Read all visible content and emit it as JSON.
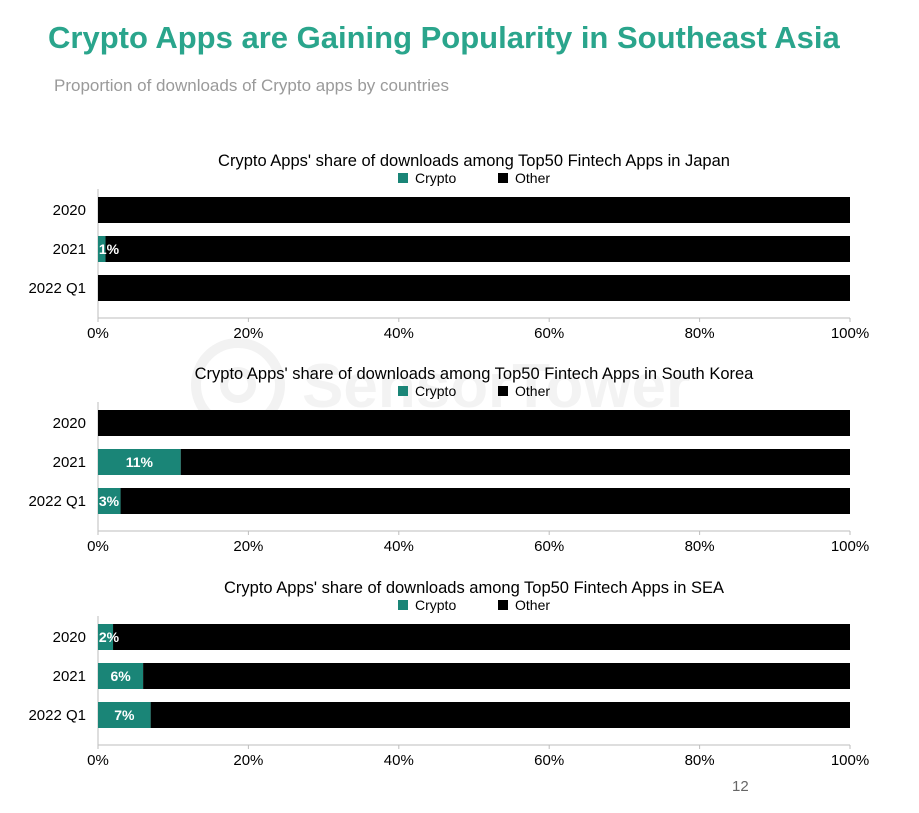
{
  "header": {
    "title": "Crypto Apps are Gaining Popularity in Southeast Asia",
    "subtitle": "Proportion of downloads of Crypto apps by countries"
  },
  "watermark": {
    "text": "SensorTower"
  },
  "page_number": "12",
  "colors": {
    "title": "#2aa58c",
    "crypto": "#1a8577",
    "other": "#000000",
    "axis": "#bdbdbd"
  },
  "chart_data": [
    {
      "type": "bar",
      "orientation": "horizontal",
      "stacked": true,
      "title": "Crypto Apps' share of downloads among Top50 Fintech Apps in Japan",
      "categories": [
        "2020",
        "2021",
        "2022 Q1"
      ],
      "series": [
        {
          "name": "Crypto",
          "values": [
            0,
            1,
            0
          ],
          "labels": [
            "",
            "1%",
            ""
          ]
        },
        {
          "name": "Other",
          "values": [
            100,
            99,
            100
          ]
        }
      ],
      "xlim": [
        0,
        100
      ],
      "xticks": [
        "0%",
        "20%",
        "40%",
        "60%",
        "80%",
        "100%"
      ],
      "legend": "top"
    },
    {
      "type": "bar",
      "orientation": "horizontal",
      "stacked": true,
      "title": "Crypto Apps' share of downloads among Top50 Fintech Apps in South Korea",
      "categories": [
        "2020",
        "2021",
        "2022 Q1"
      ],
      "series": [
        {
          "name": "Crypto",
          "values": [
            0,
            11,
            3
          ],
          "labels": [
            "",
            "11%",
            "3%"
          ]
        },
        {
          "name": "Other",
          "values": [
            100,
            89,
            97
          ]
        }
      ],
      "xlim": [
        0,
        100
      ],
      "xticks": [
        "0%",
        "20%",
        "40%",
        "60%",
        "80%",
        "100%"
      ],
      "legend": "top"
    },
    {
      "type": "bar",
      "orientation": "horizontal",
      "stacked": true,
      "title": "Crypto Apps' share of downloads among Top50 Fintech Apps in SEA",
      "categories": [
        "2020",
        "2021",
        "2022 Q1"
      ],
      "series": [
        {
          "name": "Crypto",
          "values": [
            2,
            6,
            7
          ],
          "labels": [
            "2%",
            "6%",
            "7%"
          ]
        },
        {
          "name": "Other",
          "values": [
            98,
            94,
            93
          ]
        }
      ],
      "xlim": [
        0,
        100
      ],
      "xticks": [
        "0%",
        "20%",
        "40%",
        "60%",
        "80%",
        "100%"
      ],
      "legend": "top"
    }
  ]
}
